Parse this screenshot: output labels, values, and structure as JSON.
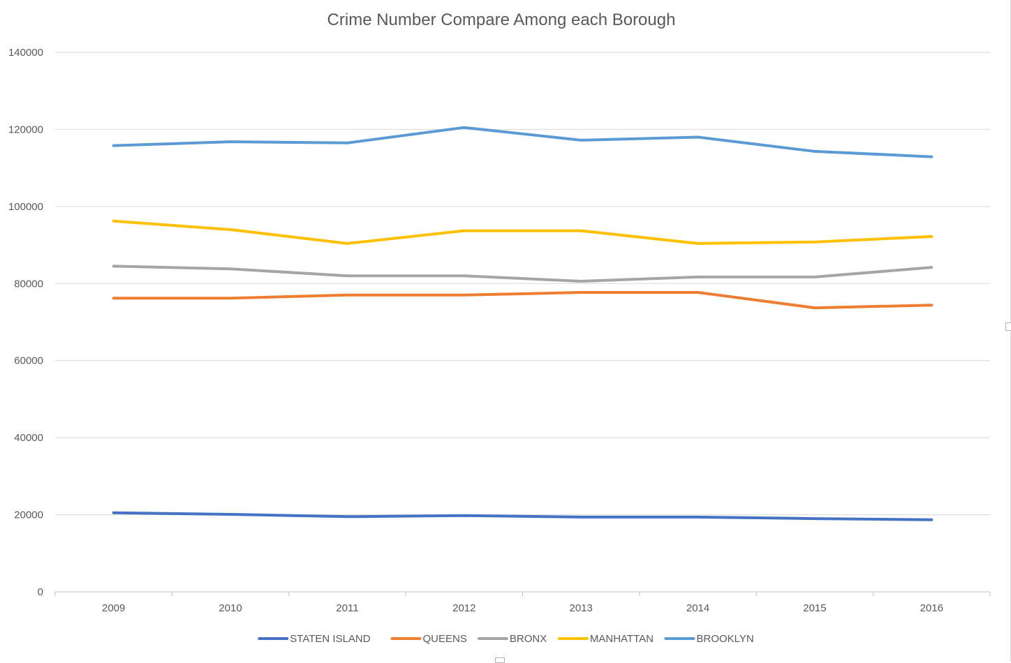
{
  "chart_data": {
    "type": "line",
    "title": "Crime Number Compare Among each Borough",
    "xlabel": "",
    "ylabel": "",
    "categories": [
      "2009",
      "2010",
      "2011",
      "2012",
      "2013",
      "2014",
      "2015",
      "2016"
    ],
    "ylim": [
      0,
      140000
    ],
    "yticks": [
      "0",
      "20000",
      "40000",
      "60000",
      "80000",
      "100000",
      "120000",
      "140000"
    ],
    "grid": true,
    "legend_position": "bottom",
    "series": [
      {
        "name": "STATEN ISLAND",
        "color": "#4472c4",
        "values": [
          20500,
          20100,
          19500,
          19800,
          19400,
          19400,
          19000,
          18700
        ]
      },
      {
        "name": "QUEENS",
        "color": "#ed7d31",
        "values": [
          76200,
          76200,
          77000,
          77000,
          77700,
          77700,
          73700,
          74400
        ]
      },
      {
        "name": "BRONX",
        "color": "#a5a5a5",
        "values": [
          84500,
          83800,
          82000,
          82000,
          80600,
          81700,
          81700,
          84200
        ]
      },
      {
        "name": "MANHATTAN",
        "color": "#ffc000",
        "values": [
          96200,
          94000,
          90400,
          93700,
          93700,
          90400,
          90800,
          92200
        ]
      },
      {
        "name": "BROOKLYN",
        "color": "#5b9bd5",
        "values": [
          115800,
          116800,
          116500,
          120500,
          117200,
          118000,
          114300,
          112900
        ]
      }
    ]
  }
}
